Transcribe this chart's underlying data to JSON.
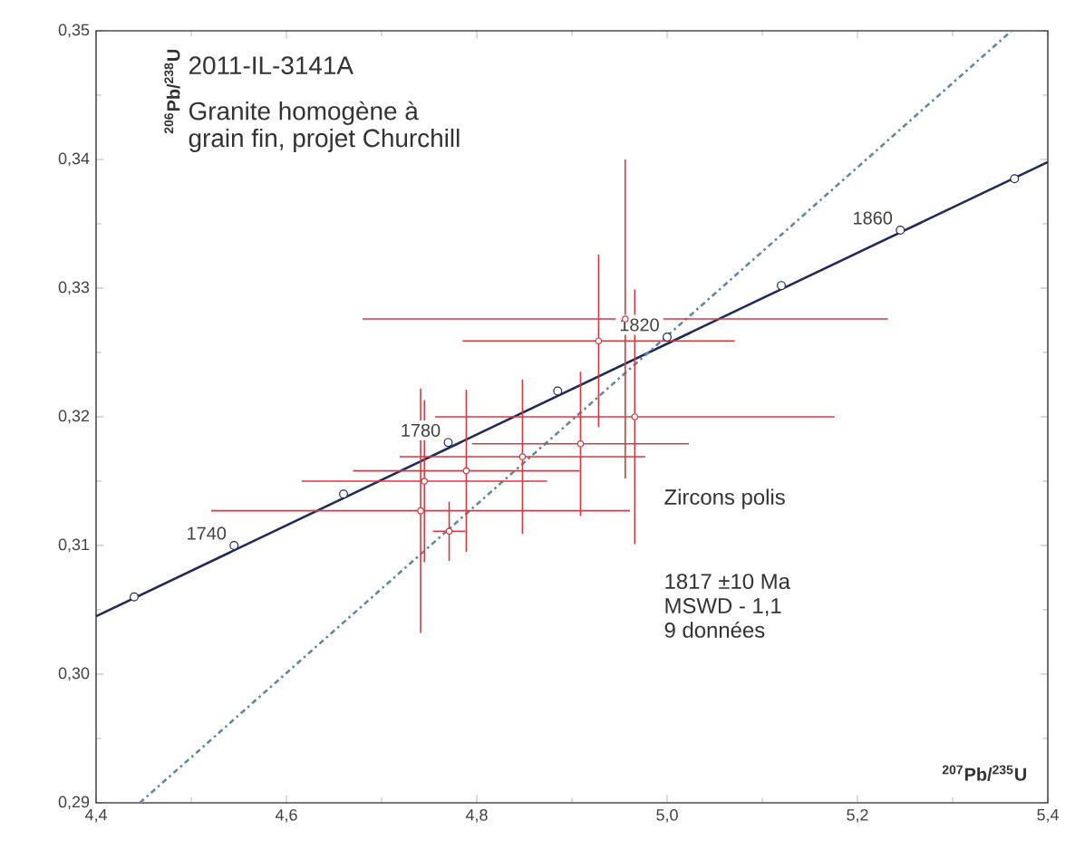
{
  "chart_data": {
    "type": "scatter",
    "title": "2011-IL-3141A",
    "subtitle": "Granite homogène à grain fin, projet Churchill",
    "xlabel": "$^{207}$Pb/$^{235}$U",
    "ylabel": "$^{206}$Pb/$^{238}$U",
    "xlim": [
      4.4,
      5.4
    ],
    "ylim": [
      0.29,
      0.35
    ],
    "xticks": [
      {
        "value": 4.4,
        "label": "4,4"
      },
      {
        "value": 4.6,
        "label": "4,6"
      },
      {
        "value": 4.8,
        "label": "4,8"
      },
      {
        "value": 5.0,
        "label": "5,0"
      },
      {
        "value": 5.2,
        "label": "5,2"
      },
      {
        "value": 5.4,
        "label": "5,4"
      }
    ],
    "yticks": [
      {
        "value": 0.29,
        "label": "0,29"
      },
      {
        "value": 0.3,
        "label": "0,30"
      },
      {
        "value": 0.31,
        "label": "0,31"
      },
      {
        "value": 0.32,
        "label": "0,32"
      },
      {
        "value": 0.33,
        "label": "0,33"
      },
      {
        "value": 0.34,
        "label": "0,34"
      },
      {
        "value": 0.35,
        "label": "0,35"
      }
    ],
    "series": [
      {
        "type": "line",
        "color": "#1f2a5a",
        "marker": "none",
        "line_style": "solid",
        "x": [
          4.4,
          5.4
        ],
        "values": [
          0.3045,
          0.3398
        ]
      },
      {
        "color": "#1f2a5a",
        "marker": "circle",
        "x": [
          4.44,
          4.545,
          4.66,
          4.77,
          4.885,
          5.0,
          5.12,
          5.245,
          5.365
        ],
        "values": [
          0.306,
          0.31,
          0.314,
          0.318,
          0.322,
          0.3262,
          0.3302,
          0.3345,
          0.3385
        ]
      },
      {
        "type": "line",
        "color": "#5f8a9a",
        "marker": "none",
        "line_style": "dashed",
        "x": [
          4.446,
          5.362
        ],
        "values": [
          0.29,
          0.35
        ]
      },
      {
        "color": "#d9383e",
        "marker": "circle",
        "x": [
          4.956,
          4.928,
          4.966,
          4.741,
          4.745,
          4.789,
          4.771,
          4.848,
          4.909
        ],
        "values": [
          0.3276,
          0.3259,
          0.32,
          0.3127,
          0.315,
          0.3158,
          0.3111,
          0.3169,
          0.3179
        ],
        "xerrors": [
          0.276,
          0.143,
          0.21,
          0.22,
          0.129,
          0.119,
          0.017,
          0.129,
          0.114
        ],
        "errors": [
          0.0124,
          0.0067,
          0.0099,
          0.0095,
          0.0063,
          0.0063,
          0.0023,
          0.006,
          0.0056
        ]
      }
    ],
    "annotations": [
      {
        "text": "1740",
        "x": 4.545,
        "y": 0.31
      },
      {
        "text": "1780",
        "x": 4.77,
        "y": 0.318
      },
      {
        "text": "1820",
        "x": 5.0,
        "y": 0.3262
      },
      {
        "text": "1860",
        "x": 5.245,
        "y": 0.3345
      },
      "Zircons polis",
      "1817 ±10 Ma",
      "MSWD - 1,1",
      "9 données"
    ]
  }
}
